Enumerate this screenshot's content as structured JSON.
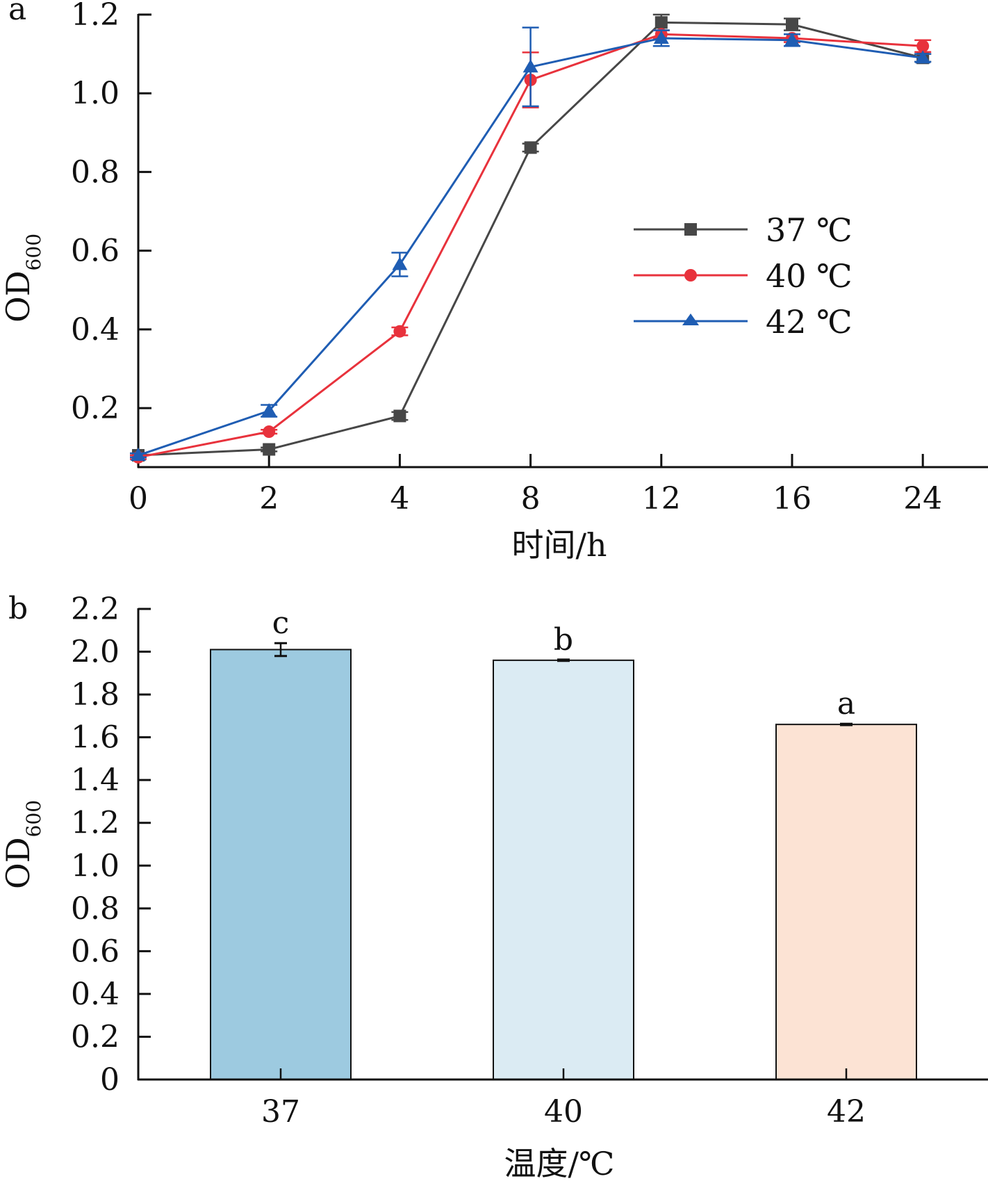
{
  "chart_data": [
    {
      "panel": "a",
      "type": "line",
      "title": "",
      "xlabel": "时间/h",
      "ylabel": "OD",
      "ylabel_subscript": "600",
      "categories": [
        "0",
        "2",
        "4",
        "8",
        "12",
        "16",
        "24"
      ],
      "ylim": [
        0.05,
        1.2
      ],
      "yticks": [
        "0.2",
        "0.4",
        "0.6",
        "0.8",
        "1.0",
        "1.2"
      ],
      "ytick_values": [
        0.2,
        0.4,
        0.6,
        0.8,
        1.0,
        1.2
      ],
      "grid": false,
      "legend_position": "center-right",
      "series": [
        {
          "name": "37 ℃",
          "color": "#474747",
          "marker": "square",
          "values": [
            0.08,
            0.095,
            0.18,
            0.862,
            1.18,
            1.175,
            1.09
          ],
          "errors": [
            0.005,
            0.005,
            0.01,
            0.01,
            0.02,
            0.015,
            0.01
          ]
        },
        {
          "name": "40 ℃",
          "color": "#e8323c",
          "marker": "circle",
          "values": [
            0.075,
            0.14,
            0.395,
            1.034,
            1.15,
            1.14,
            1.12
          ],
          "errors": [
            0.005,
            0.005,
            0.01,
            0.07,
            0.01,
            0.01,
            0.015
          ]
        },
        {
          "name": "42 ℃",
          "color": "#1f5db3",
          "marker": "triangle",
          "values": [
            0.08,
            0.193,
            0.565,
            1.067,
            1.14,
            1.135,
            1.09
          ],
          "errors": [
            0.005,
            0.015,
            0.03,
            0.1,
            0.02,
            0.015,
            0.01
          ]
        }
      ]
    },
    {
      "panel": "b",
      "type": "bar",
      "title": "",
      "xlabel": "温度/℃",
      "ylabel": "OD",
      "ylabel_subscript": "600",
      "categories": [
        "37",
        "40",
        "42"
      ],
      "ylim": [
        0,
        2.2
      ],
      "yticks": [
        "0",
        "0.2",
        "0.4",
        "0.6",
        "0.8",
        "1.0",
        "1.2",
        "1.4",
        "1.6",
        "1.8",
        "2.0",
        "2.2"
      ],
      "ytick_values": [
        0,
        0.2,
        0.4,
        0.6,
        0.8,
        1.0,
        1.2,
        1.4,
        1.6,
        1.8,
        2.0,
        2.2
      ],
      "grid": false,
      "values": [
        2.01,
        1.96,
        1.66
      ],
      "errors": [
        0.03,
        0.003,
        0.003
      ],
      "colors": [
        "#9dcae0",
        "#dbebf3",
        "#fce3d4"
      ],
      "significance": [
        "c",
        "b",
        "a"
      ]
    }
  ]
}
